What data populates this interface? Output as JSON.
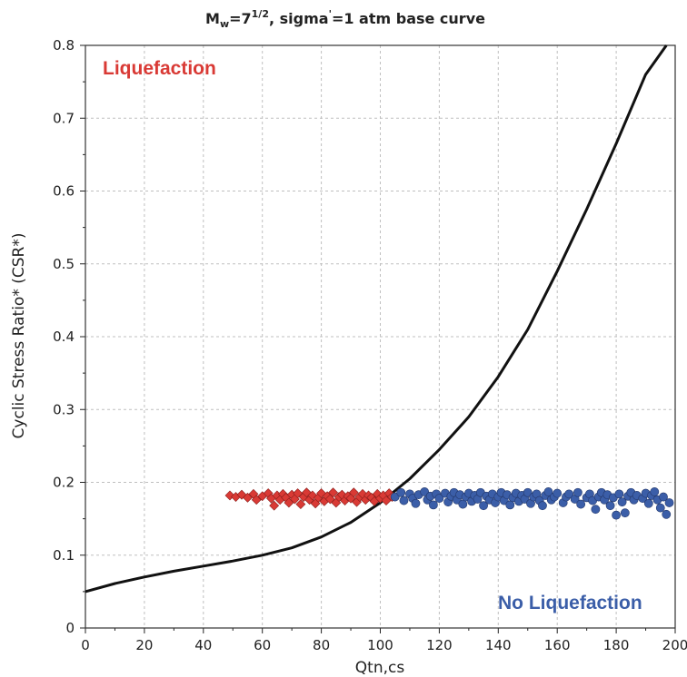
{
  "chart_data": {
    "type": "scatter",
    "title_parts": {
      "m": "M",
      "w": "w",
      "eq1": "=7",
      "frac": "1/2",
      "rest1": ", sigma",
      "prime": "'",
      "rest2": "=1 atm base curve"
    },
    "xlabel": "Qtn,cs",
    "ylabel": "Cyclic Stress Ratio* (CSR*)",
    "xlim": [
      0,
      200
    ],
    "ylim": [
      0,
      0.8
    ],
    "xticks": [
      "0",
      "20",
      "40",
      "60",
      "80",
      "100",
      "120",
      "140",
      "160",
      "180",
      "200"
    ],
    "yticks": [
      "0",
      "0.1",
      "0.2",
      "0.3",
      "0.4",
      "0.5",
      "0.6",
      "0.7",
      "0.8"
    ],
    "grid": true,
    "annotations": {
      "liquefaction": "Liquefaction",
      "no_liquefaction": "No Liquefaction"
    },
    "colors": {
      "liquefaction": "#d93a35",
      "no_liquefaction": "#3b5ea8",
      "curve": "#111111",
      "grid": "#bfbfbf"
    },
    "curve": {
      "x": [
        0,
        10,
        20,
        30,
        40,
        50,
        60,
        70,
        80,
        90,
        100,
        110,
        120,
        130,
        140,
        150,
        160,
        170,
        180,
        190,
        197
      ],
      "y": [
        0.05,
        0.061,
        0.07,
        0.078,
        0.085,
        0.092,
        0.1,
        0.11,
        0.125,
        0.145,
        0.172,
        0.205,
        0.245,
        0.29,
        0.345,
        0.41,
        0.49,
        0.575,
        0.665,
        0.76,
        0.8
      ]
    },
    "series": [
      {
        "category": "liquefaction",
        "marker": "diamond",
        "points": [
          [
            49,
            0.182
          ],
          [
            51,
            0.18
          ],
          [
            53,
            0.183
          ],
          [
            55,
            0.179
          ],
          [
            57,
            0.184
          ],
          [
            58,
            0.176
          ],
          [
            60,
            0.181
          ],
          [
            62,
            0.185
          ],
          [
            63,
            0.178
          ],
          [
            64,
            0.168
          ],
          [
            65,
            0.182
          ],
          [
            66,
            0.176
          ],
          [
            67,
            0.184
          ],
          [
            68,
            0.179
          ],
          [
            69,
            0.172
          ],
          [
            70,
            0.183
          ],
          [
            71,
            0.177
          ],
          [
            72,
            0.185
          ],
          [
            73,
            0.17
          ],
          [
            74,
            0.18
          ],
          [
            75,
            0.186
          ],
          [
            76,
            0.176
          ],
          [
            77,
            0.182
          ],
          [
            78,
            0.171
          ],
          [
            79,
            0.179
          ],
          [
            80,
            0.185
          ],
          [
            81,
            0.174
          ],
          [
            82,
            0.181
          ],
          [
            83,
            0.177
          ],
          [
            84,
            0.186
          ],
          [
            85,
            0.172
          ],
          [
            86,
            0.18
          ],
          [
            87,
            0.183
          ],
          [
            88,
            0.175
          ],
          [
            89,
            0.181
          ],
          [
            90,
            0.178
          ],
          [
            91,
            0.186
          ],
          [
            92,
            0.173
          ],
          [
            93,
            0.18
          ],
          [
            94,
            0.184
          ],
          [
            95,
            0.176
          ],
          [
            96,
            0.182
          ],
          [
            97,
            0.179
          ],
          [
            98,
            0.174
          ],
          [
            99,
            0.184
          ],
          [
            100,
            0.178
          ],
          [
            101,
            0.182
          ],
          [
            102,
            0.175
          ],
          [
            103,
            0.185
          ],
          [
            104,
            0.18
          ]
        ]
      },
      {
        "category": "no_liquefaction",
        "marker": "circle",
        "points": [
          [
            105,
            0.18
          ],
          [
            107,
            0.186
          ],
          [
            108,
            0.175
          ],
          [
            110,
            0.184
          ],
          [
            111,
            0.178
          ],
          [
            112,
            0.171
          ],
          [
            113,
            0.183
          ],
          [
            115,
            0.187
          ],
          [
            116,
            0.176
          ],
          [
            117,
            0.181
          ],
          [
            118,
            0.169
          ],
          [
            119,
            0.184
          ],
          [
            120,
            0.178
          ],
          [
            122,
            0.185
          ],
          [
            123,
            0.173
          ],
          [
            124,
            0.181
          ],
          [
            125,
            0.186
          ],
          [
            126,
            0.176
          ],
          [
            127,
            0.183
          ],
          [
            128,
            0.17
          ],
          [
            129,
            0.18
          ],
          [
            130,
            0.185
          ],
          [
            131,
            0.174
          ],
          [
            132,
            0.182
          ],
          [
            133,
            0.177
          ],
          [
            134,
            0.186
          ],
          [
            135,
            0.168
          ],
          [
            136,
            0.181
          ],
          [
            137,
            0.176
          ],
          [
            138,
            0.184
          ],
          [
            139,
            0.172
          ],
          [
            140,
            0.18
          ],
          [
            141,
            0.186
          ],
          [
            142,
            0.175
          ],
          [
            143,
            0.183
          ],
          [
            144,
            0.169
          ],
          [
            145,
            0.179
          ],
          [
            146,
            0.185
          ],
          [
            147,
            0.174
          ],
          [
            148,
            0.182
          ],
          [
            149,
            0.177
          ],
          [
            150,
            0.186
          ],
          [
            151,
            0.171
          ],
          [
            152,
            0.18
          ],
          [
            153,
            0.184
          ],
          [
            154,
            0.175
          ],
          [
            155,
            0.168
          ],
          [
            156,
            0.182
          ],
          [
            157,
            0.187
          ],
          [
            158,
            0.176
          ],
          [
            159,
            0.18
          ],
          [
            160,
            0.185
          ],
          [
            162,
            0.172
          ],
          [
            163,
            0.18
          ],
          [
            164,
            0.184
          ],
          [
            166,
            0.177
          ],
          [
            167,
            0.186
          ],
          [
            168,
            0.17
          ],
          [
            170,
            0.179
          ],
          [
            171,
            0.184
          ],
          [
            172,
            0.175
          ],
          [
            173,
            0.163
          ],
          [
            174,
            0.18
          ],
          [
            175,
            0.186
          ],
          [
            176,
            0.176
          ],
          [
            177,
            0.183
          ],
          [
            178,
            0.168
          ],
          [
            179,
            0.179
          ],
          [
            180,
            0.155
          ],
          [
            181,
            0.184
          ],
          [
            182,
            0.173
          ],
          [
            183,
            0.158
          ],
          [
            184,
            0.181
          ],
          [
            185,
            0.186
          ],
          [
            186,
            0.176
          ],
          [
            187,
            0.182
          ],
          [
            189,
            0.178
          ],
          [
            190,
            0.185
          ],
          [
            191,
            0.171
          ],
          [
            192,
            0.182
          ],
          [
            193,
            0.187
          ],
          [
            194,
            0.176
          ],
          [
            195,
            0.165
          ],
          [
            196,
            0.18
          ],
          [
            197,
            0.156
          ],
          [
            198,
            0.172
          ]
        ]
      }
    ]
  }
}
